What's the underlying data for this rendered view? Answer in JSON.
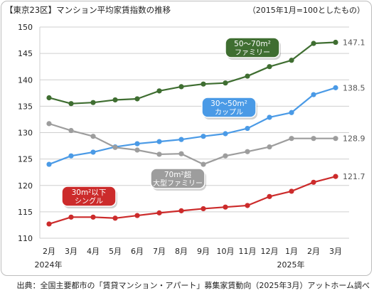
{
  "header": {
    "title": "【東京23区】マンション平均家賃指数の推移",
    "note": "（2015年1月=100としたもの）"
  },
  "source": "出典：全国主要都市の「賃貸マンション・アパート」募集家賃動向（2025年3月）アットホーム調べ",
  "chart_data": {
    "type": "line",
    "title": "【東京23区】マンション平均家賃指数の推移",
    "ylim": [
      110,
      150
    ],
    "yticks": [
      110,
      115,
      120,
      125,
      130,
      135,
      140,
      145,
      150
    ],
    "grid": true,
    "categories": [
      "2月",
      "3月",
      "4月",
      "5月",
      "6月",
      "7月",
      "8月",
      "9月",
      "10月",
      "11月",
      "12月",
      "1月",
      "2月",
      "3月"
    ],
    "year_labels": [
      {
        "label": "2024年",
        "index": 0
      },
      {
        "label": "2025年",
        "index": 11
      }
    ],
    "series": [
      {
        "name": "50〜70m²ファミリー",
        "label_lines": [
          "50〜70m²",
          "ファミリー"
        ],
        "color": "#3f6e31",
        "values": [
          136.6,
          135.5,
          135.7,
          136.2,
          136.4,
          137.9,
          138.7,
          139.2,
          139.4,
          140.7,
          142.5,
          143.7,
          146.9,
          147.1
        ],
        "end_label": "147.1"
      },
      {
        "name": "30〜50m²カップル",
        "label_lines": [
          "30〜50m²",
          "カップル"
        ],
        "color": "#4a9ae6",
        "values": [
          124.0,
          125.6,
          126.3,
          127.3,
          127.9,
          128.3,
          128.7,
          129.3,
          129.8,
          130.8,
          132.9,
          133.8,
          137.2,
          138.5
        ],
        "end_label": "138.5"
      },
      {
        "name": "70m²超大型ファミリー",
        "label_lines": [
          "70m²超",
          "大型ファミリー"
        ],
        "color": "#9d9d9d",
        "values": [
          131.7,
          130.4,
          129.3,
          127.2,
          126.7,
          125.9,
          126.0,
          124.0,
          125.6,
          126.4,
          127.3,
          128.9,
          128.9,
          128.9
        ],
        "end_label": "128.9"
      },
      {
        "name": "30m²以下シングル",
        "label_lines": [
          "30m²以下",
          "シングル"
        ],
        "color": "#cc2b2b",
        "values": [
          112.7,
          114.0,
          114.0,
          113.8,
          114.3,
          114.8,
          115.2,
          115.6,
          115.9,
          116.2,
          117.9,
          118.9,
          120.6,
          121.7
        ],
        "end_label": "121.7"
      }
    ]
  }
}
